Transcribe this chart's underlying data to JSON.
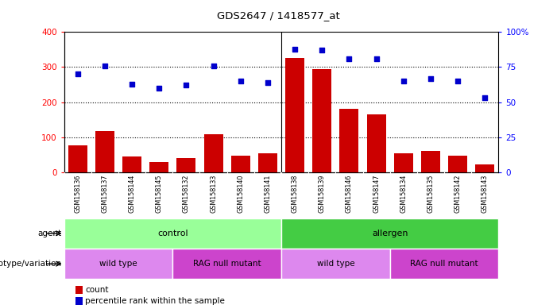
{
  "title": "GDS2647 / 1418577_at",
  "samples": [
    "GSM158136",
    "GSM158137",
    "GSM158144",
    "GSM158145",
    "GSM158132",
    "GSM158133",
    "GSM158140",
    "GSM158141",
    "GSM158138",
    "GSM158139",
    "GSM158146",
    "GSM158147",
    "GSM158134",
    "GSM158135",
    "GSM158142",
    "GSM158143"
  ],
  "counts": [
    78,
    118,
    45,
    30,
    40,
    108,
    48,
    55,
    325,
    295,
    180,
    165,
    55,
    60,
    48,
    22
  ],
  "percentiles": [
    70,
    76,
    63,
    60,
    62,
    76,
    65,
    64,
    88,
    87,
    81,
    81,
    65,
    67,
    65,
    53
  ],
  "ylim_left": [
    0,
    400
  ],
  "ylim_right": [
    0,
    100
  ],
  "yticks_left": [
    0,
    100,
    200,
    300,
    400
  ],
  "yticks_right": [
    0,
    25,
    50,
    75,
    100
  ],
  "bar_color": "#cc0000",
  "dot_color": "#0000cc",
  "agent_groups": [
    {
      "label": "control",
      "start": 0,
      "end": 8,
      "color": "#99ff99"
    },
    {
      "label": "allergen",
      "start": 8,
      "end": 16,
      "color": "#44cc44"
    }
  ],
  "genotype_groups": [
    {
      "label": "wild type",
      "start": 0,
      "end": 4,
      "color": "#dd88ee"
    },
    {
      "label": "RAG null mutant",
      "start": 4,
      "end": 8,
      "color": "#cc44cc"
    },
    {
      "label": "wild type",
      "start": 8,
      "end": 12,
      "color": "#dd88ee"
    },
    {
      "label": "RAG null mutant",
      "start": 12,
      "end": 16,
      "color": "#cc44cc"
    }
  ],
  "legend_count_label": "count",
  "legend_pct_label": "percentile rank within the sample",
  "agent_label": "agent",
  "genotype_label": "genotype/variation",
  "background_color": "#ffffff",
  "plot_bg_color": "#ffffff",
  "tick_bg_color": "#cccccc"
}
